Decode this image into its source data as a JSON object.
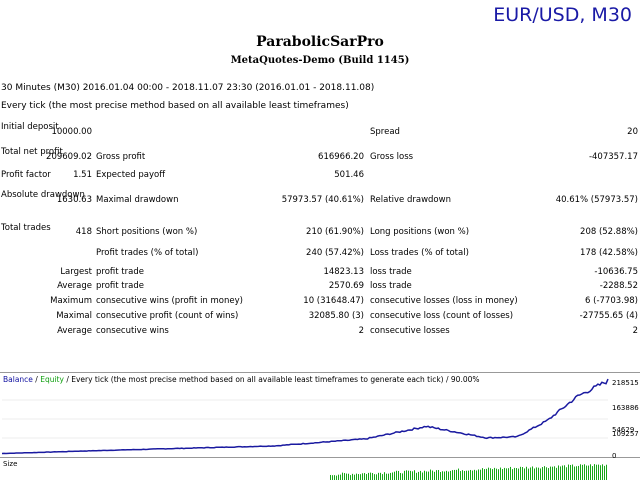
{
  "corner_label": "EUR/USD, M30",
  "title": "ParabolicSarPro",
  "subtitle": "MetaQuotes-Demo (Build 1145)",
  "period_line": "30 Minutes (M30) 2016.01.04 00:00 - 2018.11.07 23:30 (2016.01.01 - 2018.11.08)",
  "model_line": "Every tick (the most precise method based on all available least timeframes)",
  "stats": {
    "initial_deposit": {
      "label": "Initial deposit",
      "value": "10000.00"
    },
    "spread": {
      "label": "Spread",
      "value": "20"
    },
    "total_net_profit": {
      "label": "Total net profit",
      "value": "209609.02"
    },
    "gross_profit": {
      "label": "Gross profit",
      "value": "616966.20"
    },
    "gross_loss": {
      "label": "Gross loss",
      "value": "-407357.17"
    },
    "profit_factor": {
      "label": "Profit factor",
      "value": "1.51"
    },
    "expected_payoff": {
      "label": "Expected payoff",
      "value": "501.46"
    },
    "absolute_drawdown": {
      "label": "Absolute drawdown",
      "value": "1630.63"
    },
    "maximal_drawdown": {
      "label": "Maximal drawdown",
      "value": "57973.57 (40.61%)"
    },
    "relative_drawdown": {
      "label": "Relative drawdown",
      "value": "40.61% (57973.57)"
    },
    "total_trades": {
      "label": "Total trades",
      "value": "418"
    },
    "short_positions": {
      "label": "Short positions (won %)",
      "value": "210 (61.90%)"
    },
    "long_positions": {
      "label": "Long positions (won %)",
      "value": "208 (52.88%)"
    },
    "profit_trades": {
      "label": "Profit trades (% of total)",
      "value": "240 (57.42%)"
    },
    "loss_trades": {
      "label": "Loss trades (% of total)",
      "value": "178 (42.58%)"
    },
    "largest": {
      "label": "Largest",
      "profit_label": "profit trade",
      "profit_value": "14823.13",
      "loss_label": "loss trade",
      "loss_value": "-10636.75"
    },
    "average": {
      "label": "Average",
      "profit_label": "profit trade",
      "profit_value": "2570.69",
      "loss_label": "loss trade",
      "loss_value": "-2288.52"
    },
    "maximum": {
      "label": "Maximum",
      "wins_label": "consecutive wins (profit in money)",
      "wins_value": "10 (31648.47)",
      "losses_label": "consecutive losses (loss in money)",
      "losses_value": "6 (-7703.98)"
    },
    "maximal": {
      "label": "Maximal",
      "wins_label": "consecutive profit (count of wins)",
      "wins_value": "32085.80 (3)",
      "losses_label": "consecutive loss (count of losses)",
      "losses_value": "-27755.65 (4)"
    },
    "average_consec": {
      "label": "Average",
      "wins_label": "consecutive wins",
      "wins_value": "2",
      "losses_label": "consecutive losses",
      "losses_value": "2"
    }
  },
  "chart": {
    "legend_balance": "Balance",
    "legend_sep": " / ",
    "legend_equity": "Equity",
    "legend_rest": " / Every tick (the most precise method based on all available least timeframes to generate each tick) / 90.00%",
    "y_labels": [
      "218515",
      "163886",
      "109257",
      "54629",
      "0"
    ],
    "balance_color": "#1a1aa0",
    "equity_color": "#18a818",
    "size_label": "Size"
  },
  "chart_data": {
    "type": "line",
    "title": "Balance / Equity",
    "ylim": [
      0,
      218515
    ],
    "x": [
      0,
      15,
      30,
      45,
      60,
      70,
      80,
      85,
      90,
      95,
      100
    ],
    "series": [
      {
        "name": "Balance",
        "values": [
          10000,
          18000,
          25000,
          32000,
          52000,
          88000,
          55000,
          58000,
          105000,
          175000,
          219000
        ]
      }
    ]
  }
}
